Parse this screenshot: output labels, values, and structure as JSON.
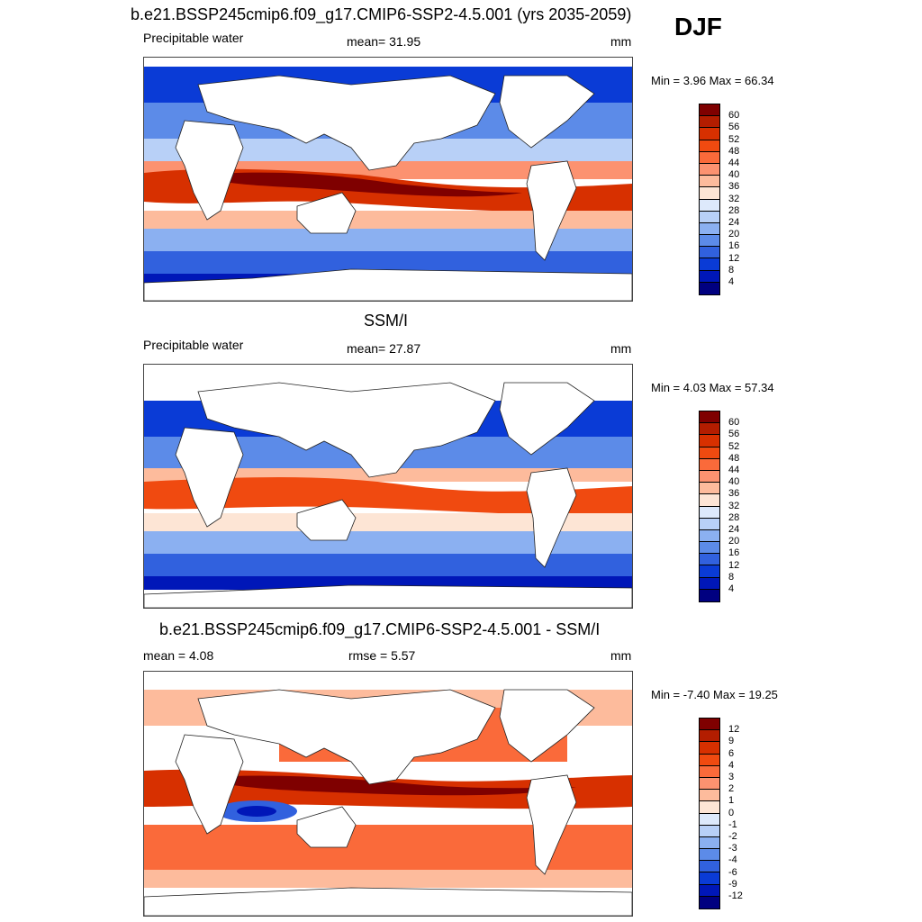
{
  "header": {
    "title": "b.e21.BSSP245cmip6.f09_g17.CMIP6-SSP2-4.5.001 (yrs 2035-2059)",
    "season": "DJF"
  },
  "panels": [
    {
      "variable": "Precipitable water",
      "stat": "mean=  31.95",
      "units": "mm",
      "minmax": "Min =   3.96 Max =  66.34",
      "colorbar_labels": [
        "60",
        "56",
        "52",
        "48",
        "44",
        "40",
        "36",
        "32",
        "28",
        "24",
        "20",
        "16",
        "12",
        "8",
        "4"
      ]
    },
    {
      "title": "SSM/I",
      "variable": "Precipitable water",
      "stat": "mean=  27.87",
      "units": "mm",
      "minmax": "Min =   4.03 Max =  57.34",
      "colorbar_labels": [
        "60",
        "56",
        "52",
        "48",
        "44",
        "40",
        "36",
        "32",
        "28",
        "24",
        "20",
        "16",
        "12",
        "8",
        "4"
      ]
    },
    {
      "title": "b.e21.BSSP245cmip6.f09_g17.CMIP6-SSP2-4.5.001 - SSM/I",
      "left_stat": "mean =   4.08",
      "stat": "rmse =   5.57",
      "units": "mm",
      "minmax": "Min =  -7.40 Max =  19.25",
      "colorbar_labels": [
        "12",
        "9",
        "6",
        "4",
        "3",
        "2",
        "1",
        "0",
        "-1",
        "-2",
        "-3",
        "-4",
        "-6",
        "-9",
        "-12"
      ]
    }
  ],
  "colors": {
    "precip_scale": [
      "#7f0000",
      "#b31d00",
      "#d73000",
      "#f04a10",
      "#fa6a3a",
      "#fc9270",
      "#fdbb9c",
      "#fde5d5",
      "#dde9fb",
      "#b8d0f7",
      "#8bb0f1",
      "#5c8be8",
      "#3161de",
      "#0a3bd6",
      "#0017b8",
      "#000080"
    ],
    "diff_scale": [
      "#7f0000",
      "#b31d00",
      "#d73000",
      "#f04a10",
      "#fa6a3a",
      "#fc9270",
      "#fdbb9c",
      "#fde5d5",
      "#dde9fb",
      "#b8d0f7",
      "#8bb0f1",
      "#5c8be8",
      "#3161de",
      "#0a3bd6",
      "#0017b8",
      "#000080"
    ]
  }
}
